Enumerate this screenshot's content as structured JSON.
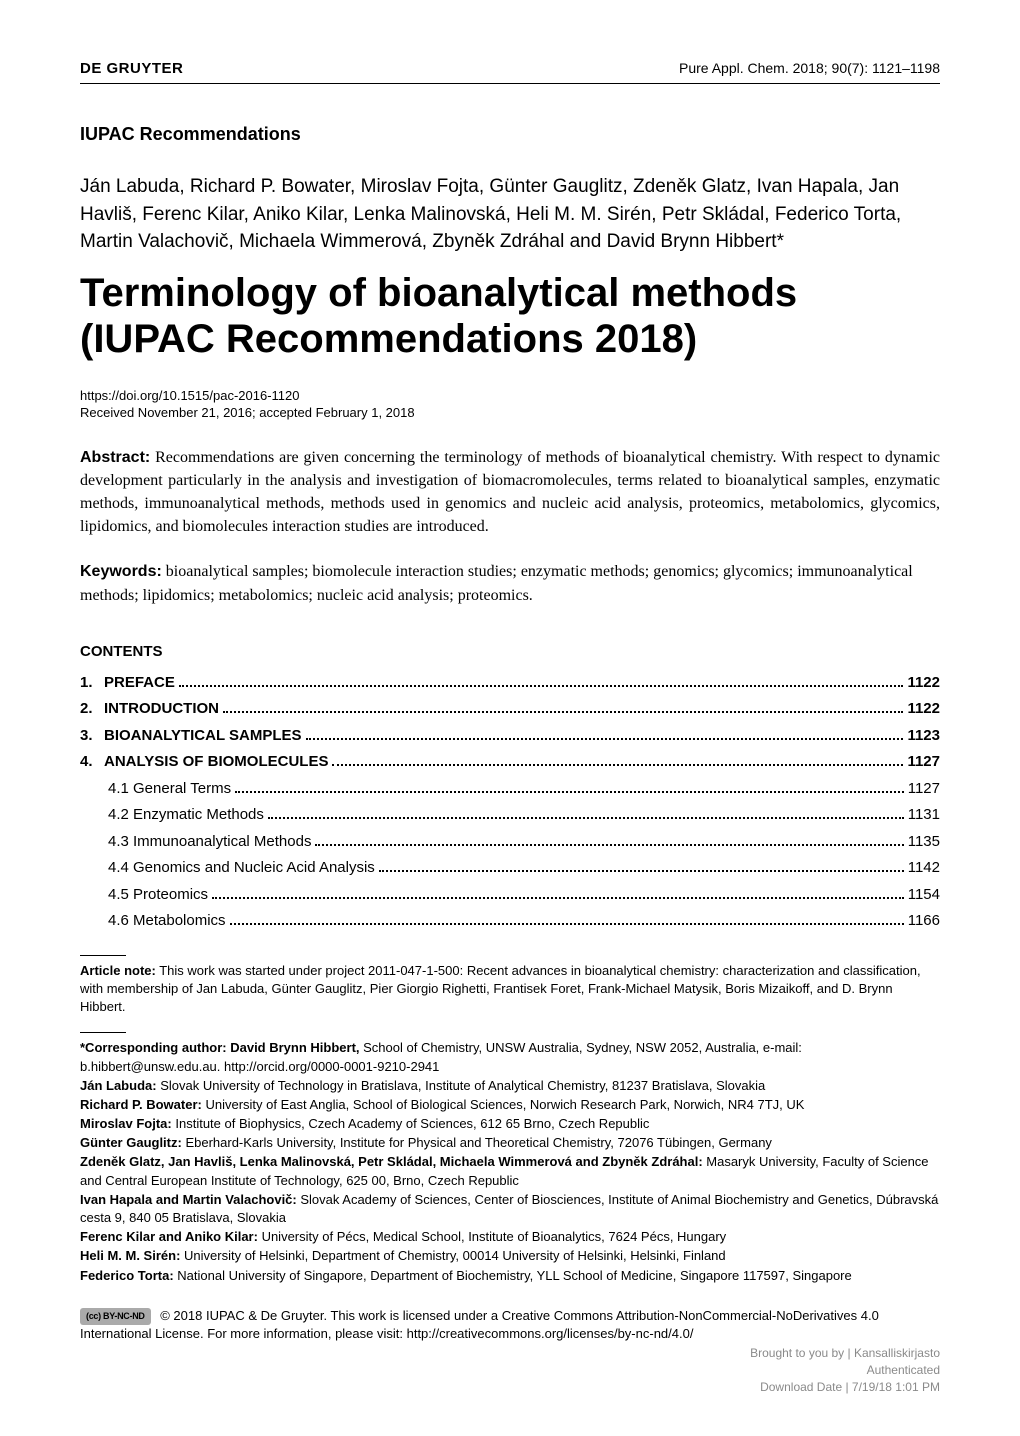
{
  "header": {
    "publisher": "DE GRUYTER",
    "journal_ref": "Pure Appl. Chem. 2018; 90(7): 1121–1198"
  },
  "section_label": "IUPAC Recommendations",
  "authors": "Ján Labuda, Richard P. Bowater, Miroslav Fojta, Günter Gauglitz, Zdeněk Glatz, Ivan Hapala, Jan Havliš, Ferenc Kilar, Aniko Kilar, Lenka Malinovská, Heli M. M. Sirén, Petr Skládal, Federico Torta, Martin Valachovič, Michaela Wimmerová, Zbyněk Zdráhal and David Brynn Hibbert*",
  "title": "Terminology of bioanalytical methods (IUPAC Recommendations 2018)",
  "doi": "https://doi.org/10.1515/pac-2016-1120",
  "dates": "Received November 21, 2016; accepted February 1, 2018",
  "abstract_label": "Abstract:",
  "abstract": "Recommendations are given concerning the terminology of methods of bioanalytical chemistry. With respect to dynamic development particularly in the analysis and investigation of biomacromolecules, terms related to bioanalytical samples, enzymatic methods, immunoanalytical methods, methods used in genomics and nucleic acid analysis, proteomics, metabolomics, glycomics, lipidomics, and biomolecules interaction studies are introduced.",
  "keywords_label": "Keywords:",
  "keywords": "bioanalytical samples; biomolecule interaction studies; enzymatic methods; genomics; glycomics; immunoanalytical methods; lipidomics; metabolomics; nucleic acid analysis; proteomics.",
  "contents_heading": "CONTENTS",
  "toc": [
    {
      "num": "1.",
      "label": "PREFACE",
      "page": "1122",
      "bold": true
    },
    {
      "num": "2.",
      "label": "INTRODUCTION",
      "page": "1122",
      "bold": true
    },
    {
      "num": "3.",
      "label": "BIOANALYTICAL SAMPLES",
      "page": "1123",
      "bold": true
    },
    {
      "num": "4.",
      "label": "ANALYSIS OF BIOMOLECULES",
      "page": "1127",
      "bold": true
    },
    {
      "num": "",
      "label": "4.1  General Terms",
      "page": "1127",
      "bold": false
    },
    {
      "num": "",
      "label": "4.2  Enzymatic Methods",
      "page": "1131",
      "bold": false
    },
    {
      "num": "",
      "label": "4.3  Immunoanalytical Methods",
      "page": "1135",
      "bold": false
    },
    {
      "num": "",
      "label": "4.4  Genomics and Nucleic Acid Analysis",
      "page": "1142",
      "bold": false
    },
    {
      "num": "",
      "label": "4.5  Proteomics",
      "page": "1154",
      "bold": false
    },
    {
      "num": "",
      "label": "4.6  Metabolomics",
      "page": "1166",
      "bold": false
    }
  ],
  "article_note_label": "Article note:",
  "article_note": "This work was started under project 2011-047-1-500: Recent advances in bioanalytical chemistry: characterization and classification, with membership of Jan Labuda, Günter Gauglitz, Pier Giorgio Righetti, Frantisek Foret, Frank-Michael Matysik, Boris Mizaikoff, and D. Brynn Hibbert.",
  "affiliations": [
    {
      "name": "*Corresponding author: David Brynn Hibbert,",
      "text": " School of Chemistry, UNSW Australia, Sydney, NSW 2052, Australia, e-mail: b.hibbert@unsw.edu.au. http://orcid.org/0000-0001-9210-2941"
    },
    {
      "name": "Ján Labuda:",
      "text": " Slovak University of Technology in Bratislava, Institute of Analytical Chemistry, 81237 Bratislava, Slovakia"
    },
    {
      "name": "Richard P. Bowater:",
      "text": " University of East Anglia, School of Biological Sciences, Norwich Research Park, Norwich, NR4 7TJ, UK"
    },
    {
      "name": "Miroslav Fojta:",
      "text": " Institute of Biophysics, Czech Academy of Sciences, 612 65 Brno, Czech Republic"
    },
    {
      "name": "Günter Gauglitz:",
      "text": " Eberhard-Karls University, Institute for Physical and Theoretical Chemistry, 72076 Tübingen, Germany"
    },
    {
      "name": "Zdeněk Glatz, Jan Havliš, Lenka Malinovská, Petr Skládal, Michaela Wimmerová and Zbyněk Zdráhal:",
      "text": " Masaryk University, Faculty of Science and Central European Institute of Technology, 625 00, Brno, Czech Republic"
    },
    {
      "name": "Ivan Hapala and Martin Valachovič:",
      "text": " Slovak Academy of Sciences, Center of Biosciences, Institute of Animal Biochemistry and Genetics, Dúbravská cesta 9, 840 05 Bratislava, Slovakia"
    },
    {
      "name": "Ferenc Kilar and Aniko Kilar:",
      "text": " University of Pécs, Medical School, Institute of Bioanalytics, 7624 Pécs, Hungary"
    },
    {
      "name": "Heli M. M. Sirén:",
      "text": " University of Helsinki, Department of Chemistry, 00014 University of Helsinki, Helsinki, Finland"
    },
    {
      "name": "Federico Torta:",
      "text": " National University of Singapore, Department of Biochemistry, YLL School of Medicine, Singapore 117597, Singapore"
    }
  ],
  "license": {
    "badge": "(cc) BY-NC-ND",
    "text": "© 2018 IUPAC & De Gruyter. This work is licensed under a Creative Commons Attribution-NonCommercial-NoDerivatives 4.0 International License. For more information, please visit: http://creativecommons.org/licenses/by-nc-nd/4.0/"
  },
  "footer": {
    "line1": "Brought to you by | Kansalliskirjasto",
    "line2": "Authenticated",
    "line3": "Download Date | 7/19/18 1:01 PM"
  }
}
